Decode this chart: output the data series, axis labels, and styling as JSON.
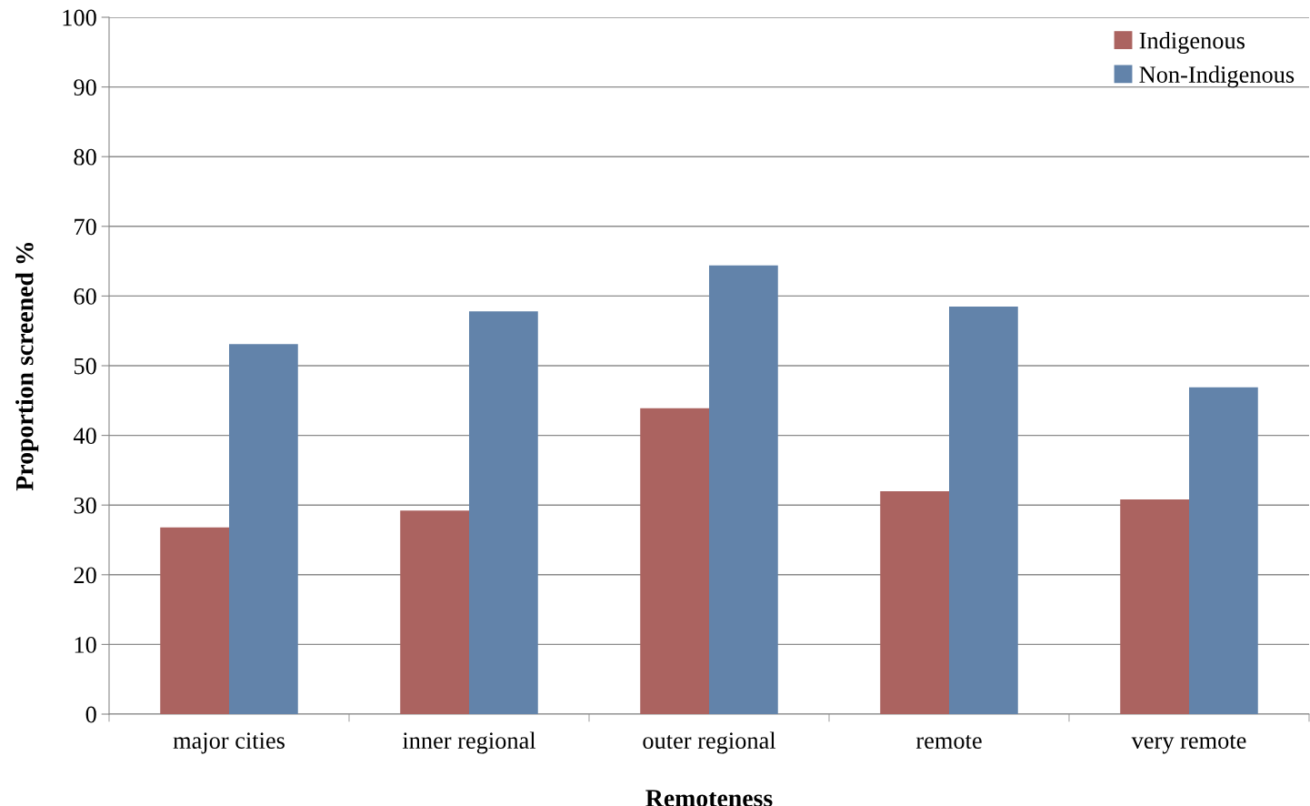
{
  "chart_data": {
    "type": "bar",
    "xlabel": "Remoteness",
    "ylabel": "Proportion screened %",
    "categories": [
      "major cities",
      "inner regional",
      "outer regional",
      "remote",
      "very remote"
    ],
    "series": [
      {
        "name": "Indigenous",
        "color": "#ab6360",
        "values": [
          26.8,
          29.2,
          43.9,
          32.0,
          30.8
        ]
      },
      {
        "name": "Non-Indigenous",
        "color": "#6283aa",
        "values": [
          53.1,
          57.8,
          64.4,
          58.5,
          46.9
        ]
      }
    ],
    "ylim": [
      0,
      100
    ],
    "yticks": [
      0,
      10,
      20,
      30,
      40,
      50,
      60,
      70,
      80,
      90,
      100
    ],
    "grid": "y",
    "legend": "top right"
  }
}
